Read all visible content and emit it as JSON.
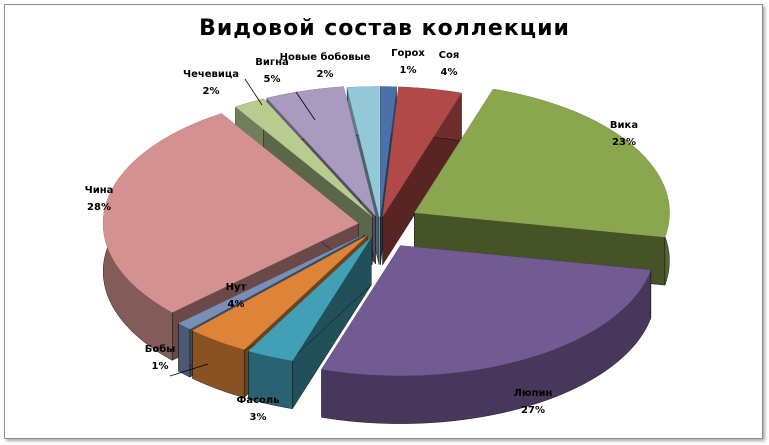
{
  "chart_data": {
    "type": "pie",
    "style": "3d-exploded",
    "title": "Видовой состав коллекции",
    "categories": [
      "Горох",
      "Соя",
      "Вика",
      "Люпин",
      "Фасоль",
      "Нут",
      "Бобы",
      "Чина",
      "Чечевица",
      "Вигна",
      "Новые бобовые"
    ],
    "values": [
      1,
      4,
      23,
      27,
      3,
      4,
      1,
      28,
      2,
      5,
      2
    ],
    "value_labels": [
      "1%",
      "4%",
      "23%",
      "27%",
      "3%",
      "4%",
      "1%",
      "28%",
      "2%",
      "5%",
      "2%"
    ],
    "colors": [
      "#4a72a8",
      "#b04a48",
      "#8aa64e",
      "#725a92",
      "#42a0b6",
      "#dd8438",
      "#7a8fb8",
      "#d39290",
      "#b8cc90",
      "#a99ac0",
      "#94c8d8"
    ],
    "legend": "none"
  }
}
